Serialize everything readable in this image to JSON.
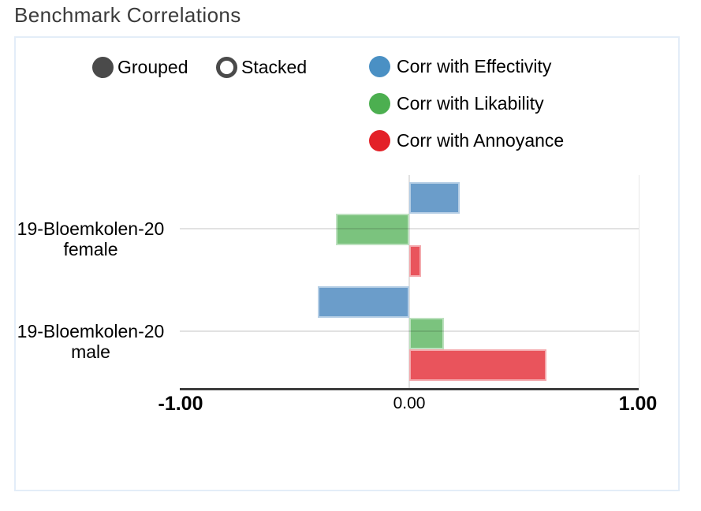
{
  "title": "Benchmark Correlations",
  "mode_toggle": {
    "options": [
      {
        "label": "Grouped",
        "selected": true
      },
      {
        "label": "Stacked",
        "selected": false
      }
    ]
  },
  "legend": [
    {
      "label": "Corr with Effectivity",
      "color": "#4a90c4"
    },
    {
      "label": "Corr with Likability",
      "color": "#4caf50"
    },
    {
      "label": "Corr with Annoyance",
      "color": "#e32128"
    }
  ],
  "colors": {
    "panel_border": "#e3edf8",
    "radio": "#4a4a4a",
    "axis_line": "#3d3d3d",
    "gridline": "#dddddd",
    "title_text": "#3b3b3b"
  },
  "chart_data": {
    "type": "bar",
    "orientation": "horizontal",
    "mode": "grouped",
    "title": "Benchmark Correlations",
    "categories": [
      "19-Bloemkolen-20 female",
      "19-Bloemkolen-20 male"
    ],
    "category_label_lines": [
      [
        "19-Bloemkolen-20",
        "female"
      ],
      [
        "19-Bloemkolen-20",
        "male"
      ]
    ],
    "series": [
      {
        "name": "Corr with Effectivity",
        "marker_color": "#4a90c4",
        "bar_color": "#6b9dca",
        "values": [
          0.22,
          -0.4
        ]
      },
      {
        "name": "Corr with Likability",
        "marker_color": "#4caf50",
        "bar_color": "#7bc37e",
        "values": [
          -0.32,
          0.15
        ]
      },
      {
        "name": "Corr with Annoyance",
        "marker_color": "#e32128",
        "bar_color": "#e9545c",
        "values": [
          0.05,
          0.6
        ]
      }
    ],
    "xlim": [
      -1,
      1
    ],
    "x_ticks": [
      {
        "value": -1,
        "label": "-1.00"
      },
      {
        "value": 0,
        "label": "0.00"
      },
      {
        "value": 1,
        "label": "1.00"
      }
    ],
    "grid": "horizontal category lines + vertical zero line",
    "legend_position": "top-right"
  }
}
